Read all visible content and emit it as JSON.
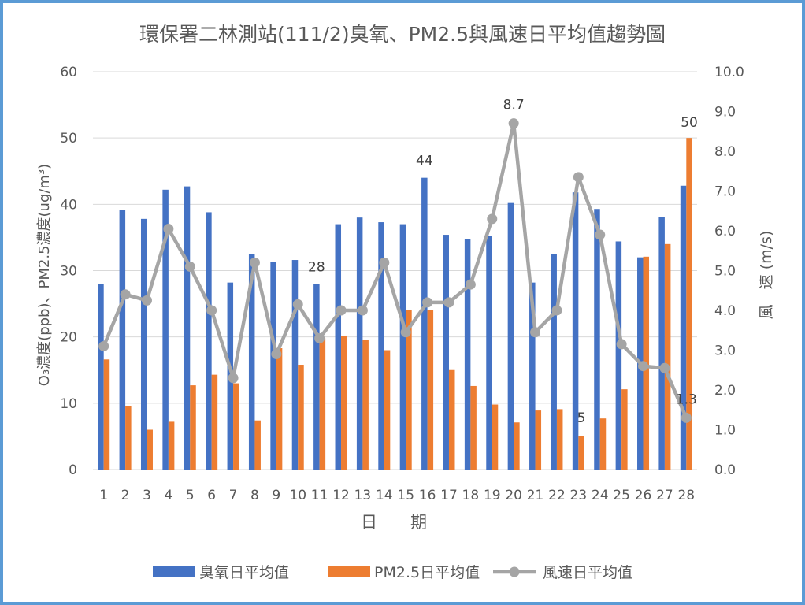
{
  "chart_data": {
    "type": "bar",
    "title": "環保署二林測站(111/2)臭氧、PM2.5與風速日平均值趨勢圖",
    "xlabel": "日　　期",
    "ylabel": "O₃濃度(ppb)、PM2.5濃度(ug/m³)",
    "y2label": "風　速 (m/s)",
    "ylim": [
      0,
      60
    ],
    "y2lim": [
      0,
      10
    ],
    "yticks": [
      "0",
      "10",
      "20",
      "30",
      "40",
      "50",
      "60"
    ],
    "y2ticks": [
      "0.0",
      "1.0",
      "2.0",
      "3.0",
      "4.0",
      "5.0",
      "6.0",
      "7.0",
      "8.0",
      "9.0",
      "10.0"
    ],
    "categories": [
      "1",
      "2",
      "3",
      "4",
      "5",
      "6",
      "7",
      "8",
      "9",
      "10",
      "11",
      "12",
      "13",
      "14",
      "15",
      "16",
      "17",
      "18",
      "19",
      "20",
      "21",
      "22",
      "23",
      "24",
      "25",
      "26",
      "27",
      "28"
    ],
    "grid": true,
    "legend_position": "bottom",
    "series": [
      {
        "name": "臭氧日平均值",
        "type": "bar",
        "axis": "left",
        "color": "#4472c4",
        "values": [
          28,
          39.2,
          37.8,
          42.2,
          42.7,
          38.8,
          28.2,
          32.5,
          31.3,
          31.6,
          28,
          37,
          38,
          37.3,
          37,
          44,
          35.4,
          34.8,
          35.2,
          40.2,
          28.2,
          32.5,
          41.8,
          39.3,
          34.4,
          32,
          38.1,
          42.8
        ]
      },
      {
        "name": "PM2.5日平均值",
        "type": "bar",
        "axis": "left",
        "color": "#ed7d31",
        "values": [
          16.6,
          9.6,
          6,
          7.2,
          12.7,
          14.3,
          13,
          7.4,
          18.3,
          15.8,
          19.8,
          20.2,
          19.5,
          18,
          24.1,
          24.1,
          15,
          12.6,
          9.8,
          7.1,
          8.9,
          9.1,
          5,
          7.7,
          12.1,
          32.1,
          34,
          50
        ]
      },
      {
        "name": "風速日平均值",
        "type": "line",
        "axis": "right",
        "color": "#a5a5a5",
        "values": [
          3.1,
          4.4,
          4.25,
          6.05,
          5.1,
          4.0,
          2.3,
          5.2,
          2.9,
          4.15,
          3.3,
          4.0,
          4.0,
          5.2,
          3.45,
          4.2,
          4.2,
          4.65,
          6.3,
          8.7,
          3.45,
          4.0,
          7.35,
          5.9,
          3.15,
          2.6,
          2.55,
          1.3
        ]
      }
    ],
    "annotations": [
      {
        "text": "28",
        "series": 0,
        "index": 10
      },
      {
        "text": "44",
        "series": 0,
        "index": 15
      },
      {
        "text": "5",
        "series": 1,
        "index": 22
      },
      {
        "text": "50",
        "series": 1,
        "index": 27
      },
      {
        "text": "8.7",
        "series": 2,
        "index": 19
      },
      {
        "text": "1.3",
        "series": 2,
        "index": 27
      }
    ]
  }
}
